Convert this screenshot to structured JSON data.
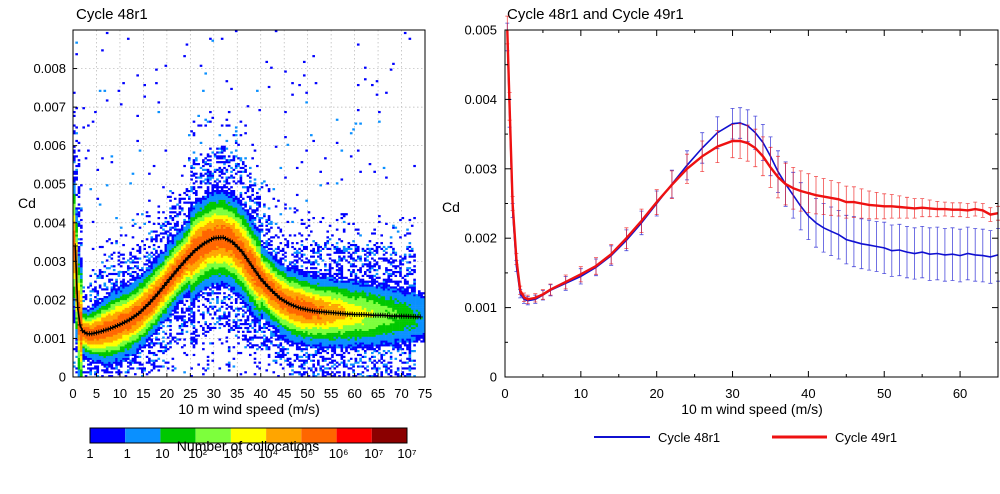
{
  "chart_data": [
    {
      "type": "heatmap",
      "title": "Cycle 48r1",
      "xlabel": "10 m wind speed (m/s)",
      "ylabel": "Cd",
      "xlim": [
        0,
        75
      ],
      "ylim": [
        0,
        0.009
      ],
      "x_ticks": [
        "0",
        "5",
        "10",
        "15",
        "20",
        "25",
        "30",
        "35",
        "40",
        "45",
        "50",
        "55",
        "60",
        "65",
        "70",
        "75"
      ],
      "y_ticks": [
        "0",
        "0.001",
        "0.002",
        "0.003",
        "0.004",
        "0.005",
        "0.006",
        "0.007",
        "0.008"
      ],
      "grid": true,
      "colorbar": {
        "label": "Number of collocations",
        "colors": [
          "#0000ff",
          "#0a90ff",
          "#00c800",
          "#7dff3c",
          "#ffff00",
          "#ffa500",
          "#ff6600",
          "#ff0000",
          "#8b0000"
        ],
        "tick_labels": [
          "1",
          "1",
          "10",
          "10²",
          "10³",
          "10⁴",
          "10⁵",
          "10⁶",
          "10⁷"
        ]
      },
      "mean_curve": {
        "x": [
          0.5,
          1,
          1.5,
          2,
          3,
          4,
          5,
          6,
          8,
          10,
          12,
          14,
          16,
          18,
          20,
          22,
          24,
          26,
          28,
          30,
          32,
          34,
          36,
          38,
          40,
          42,
          44,
          46,
          48,
          50,
          52,
          54,
          56,
          58,
          60,
          62,
          64,
          66,
          68,
          70,
          72,
          74
        ],
        "y": [
          0.0034,
          0.0018,
          0.00135,
          0.0012,
          0.00112,
          0.00112,
          0.00115,
          0.00118,
          0.00126,
          0.00136,
          0.00148,
          0.00165,
          0.00188,
          0.00215,
          0.00245,
          0.00275,
          0.00303,
          0.00328,
          0.00347,
          0.0036,
          0.00362,
          0.0035,
          0.00325,
          0.0029,
          0.00255,
          0.00228,
          0.00205,
          0.0019,
          0.0018,
          0.00174,
          0.0017,
          0.00168,
          0.00166,
          0.00164,
          0.00162,
          0.00162,
          0.0016,
          0.0016,
          0.00158,
          0.00158,
          0.00157,
          0.00156
        ]
      }
    },
    {
      "type": "line",
      "title": "Cycle 48r1 and Cycle 49r1",
      "xlabel": "10 m wind speed (m/s)",
      "ylabel": "Cd",
      "xlim": [
        0,
        65
      ],
      "ylim": [
        0,
        0.005
      ],
      "x_ticks": [
        "0",
        "10",
        "20",
        "30",
        "40",
        "50",
        "60"
      ],
      "y_ticks": [
        "0",
        "0.001",
        "0.002",
        "0.003",
        "0.004",
        "0.005"
      ],
      "series": [
        {
          "name": "Cycle 48r1",
          "color": "#1010d0",
          "x": [
            0.3,
            0.6,
            1,
            1.5,
            2,
            2.5,
            3,
            4,
            5,
            6,
            8,
            10,
            12,
            14,
            16,
            18,
            20,
            22,
            24,
            26,
            28,
            30,
            31,
            32,
            33,
            34,
            35,
            36,
            37,
            38,
            39,
            40,
            41,
            42,
            43,
            44,
            45,
            46,
            47,
            48,
            49,
            50,
            51,
            52,
            53,
            54,
            55,
            56,
            57,
            58,
            59,
            60,
            61,
            62,
            63,
            64,
            65
          ],
          "y": [
            0.0049,
            0.0038,
            0.0024,
            0.0016,
            0.0012,
            0.00112,
            0.0011,
            0.00112,
            0.00118,
            0.00125,
            0.00135,
            0.00145,
            0.00158,
            0.00175,
            0.00197,
            0.00222,
            0.0025,
            0.00278,
            0.00305,
            0.0033,
            0.00352,
            0.00365,
            0.00366,
            0.00362,
            0.00352,
            0.00338,
            0.00318,
            0.00296,
            0.00278,
            0.00262,
            0.00246,
            0.00232,
            0.00222,
            0.00215,
            0.0021,
            0.00205,
            0.00198,
            0.00195,
            0.00192,
            0.0019,
            0.00188,
            0.00186,
            0.00182,
            0.00183,
            0.0018,
            0.00178,
            0.0018,
            0.00177,
            0.00178,
            0.00176,
            0.00177,
            0.00175,
            0.00178,
            0.00176,
            0.00175,
            0.00173,
            0.00176
          ],
          "err": [
            0.0002,
            0.0002,
            0.0001,
            8e-05,
            6e-05,
            6e-05,
            6e-05,
            6e-05,
            7e-05,
            8e-05,
            0.0001,
            0.00011,
            0.00012,
            0.00014,
            0.00015,
            0.00017,
            0.00018,
            0.0002,
            0.00021,
            0.00022,
            0.00023,
            0.00022,
            0.00022,
            0.00023,
            0.00024,
            0.00026,
            0.00028,
            0.0003,
            0.00032,
            0.00033,
            0.00034,
            0.00034,
            0.00035,
            0.00035,
            0.00035,
            0.00035,
            0.00035,
            0.00036,
            0.00036,
            0.00036,
            0.00036,
            0.00037,
            0.00037,
            0.00037,
            0.00037,
            0.00037,
            0.00037,
            0.00038,
            0.00038,
            0.00038,
            0.00038,
            0.00038,
            0.00038,
            0.00038,
            0.00038,
            0.00038,
            0.00038
          ]
        },
        {
          "name": "Cycle 49r1",
          "color": "#ee1111",
          "x": [
            0.3,
            0.6,
            1,
            1.5,
            2,
            2.5,
            3,
            4,
            5,
            6,
            8,
            10,
            12,
            14,
            16,
            18,
            20,
            22,
            24,
            26,
            28,
            30,
            31,
            32,
            33,
            34,
            35,
            36,
            37,
            38,
            39,
            40,
            41,
            42,
            43,
            44,
            45,
            46,
            47,
            48,
            49,
            50,
            51,
            52,
            53,
            54,
            55,
            56,
            57,
            58,
            59,
            60,
            61,
            62,
            63,
            64,
            65
          ],
          "y": [
            0.005,
            0.0039,
            0.0025,
            0.0017,
            0.00125,
            0.00115,
            0.00112,
            0.00114,
            0.00119,
            0.00126,
            0.00137,
            0.00148,
            0.0016,
            0.00177,
            0.002,
            0.00225,
            0.00252,
            0.00277,
            0.003,
            0.00318,
            0.00332,
            0.0034,
            0.0034,
            0.00337,
            0.0033,
            0.00318,
            0.00302,
            0.00288,
            0.00278,
            0.00272,
            0.00268,
            0.00265,
            0.00262,
            0.0026,
            0.00258,
            0.00256,
            0.00252,
            0.00252,
            0.0025,
            0.00248,
            0.00247,
            0.00246,
            0.00246,
            0.00245,
            0.00244,
            0.00243,
            0.00244,
            0.00243,
            0.00242,
            0.00242,
            0.00241,
            0.00241,
            0.0024,
            0.00242,
            0.0024,
            0.00234,
            0.00236
          ],
          "err": [
            0.0002,
            0.0002,
            0.0001,
            8e-05,
            6e-05,
            6e-05,
            6e-05,
            6e-05,
            7e-05,
            8e-05,
            0.0001,
            0.00011,
            0.00012,
            0.00014,
            0.00015,
            0.00017,
            0.00018,
            0.0002,
            0.00021,
            0.00022,
            0.00023,
            0.00024,
            0.00025,
            0.00026,
            0.00027,
            0.00028,
            0.00029,
            0.0003,
            0.0003,
            0.0003,
            0.00029,
            0.00028,
            0.00027,
            0.00026,
            0.00025,
            0.00024,
            0.00023,
            0.00022,
            0.00021,
            0.0002,
            0.00019,
            0.00018,
            0.00017,
            0.00016,
            0.00015,
            0.00014,
            0.00013,
            0.00012,
            0.00011,
            0.0001,
            0.0001,
            0.0001,
            0.0001,
            0.0001,
            0.0001,
            0.0001,
            0.0001
          ]
        }
      ],
      "legend": [
        "Cycle 48r1",
        "Cycle 49r1"
      ],
      "legend_position": "bottom"
    }
  ]
}
